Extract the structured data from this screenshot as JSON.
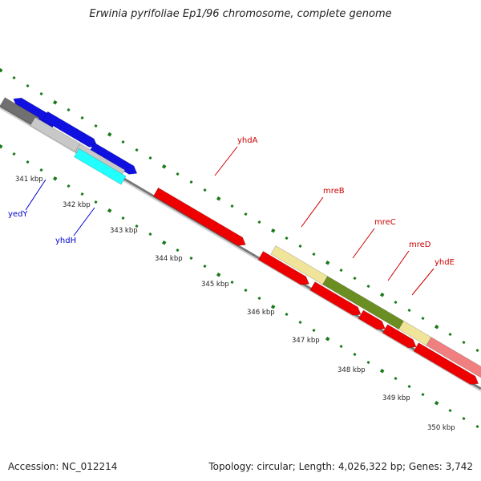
{
  "title": "Erwinia pyrifoliae Ep1/96 chromosome, complete genome",
  "footer": {
    "accession": "Accession: NC_012214",
    "topology": "Topology: circular; Length: 4,026,322 bp; Genes: 3,742"
  },
  "ticks": [
    "341 kbp",
    "342 kbp",
    "343 kbp",
    "344 kbp",
    "345 kbp",
    "346 kbp",
    "347 kbp",
    "348 kbp",
    "349 kbp",
    "350 kbp"
  ],
  "genes": [
    {
      "name": "yedY",
      "color": "#0000cc"
    },
    {
      "name": "yhdH",
      "color": "#0000cc"
    },
    {
      "name": "yhdA",
      "color": "#cc0000"
    },
    {
      "name": "mreB",
      "color": "#cc0000"
    },
    {
      "name": "mreC",
      "color": "#cc0000"
    },
    {
      "name": "mreD",
      "color": "#cc0000"
    },
    {
      "name": "yhdE",
      "color": "#cc0000"
    }
  ],
  "colors": {
    "backbone": "#808080",
    "gc_dots": "#1a7a1a",
    "blue": "#1010e0",
    "red": "#ee0000",
    "gray": "#c8c8c8",
    "darkgray": "#707070",
    "cyan": "#22ffff",
    "pale_yellow": "#f0e49a",
    "olive": "#6b8e23",
    "pink": "#f08080"
  }
}
